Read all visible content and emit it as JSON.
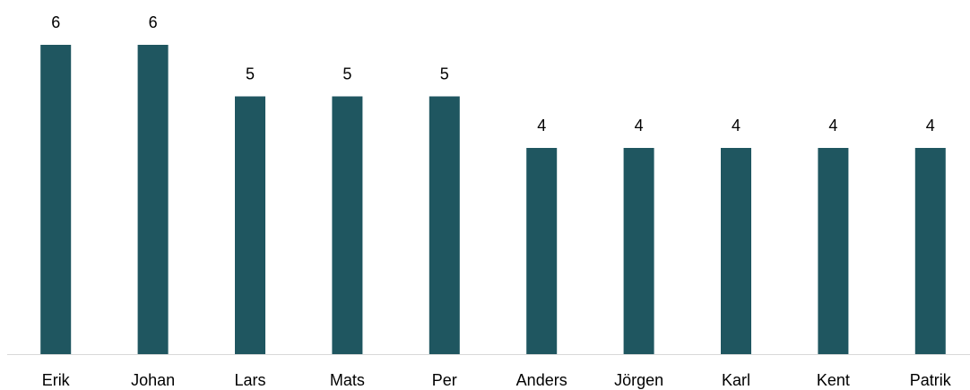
{
  "chart_data": {
    "type": "bar",
    "categories": [
      "Erik",
      "Johan",
      "Lars",
      "Mats",
      "Per",
      "Anders",
      "Jörgen",
      "Karl",
      "Kent",
      "Patrik"
    ],
    "values": [
      6,
      6,
      5,
      5,
      5,
      4,
      4,
      4,
      4,
      4
    ],
    "color": "#1f5660"
  }
}
